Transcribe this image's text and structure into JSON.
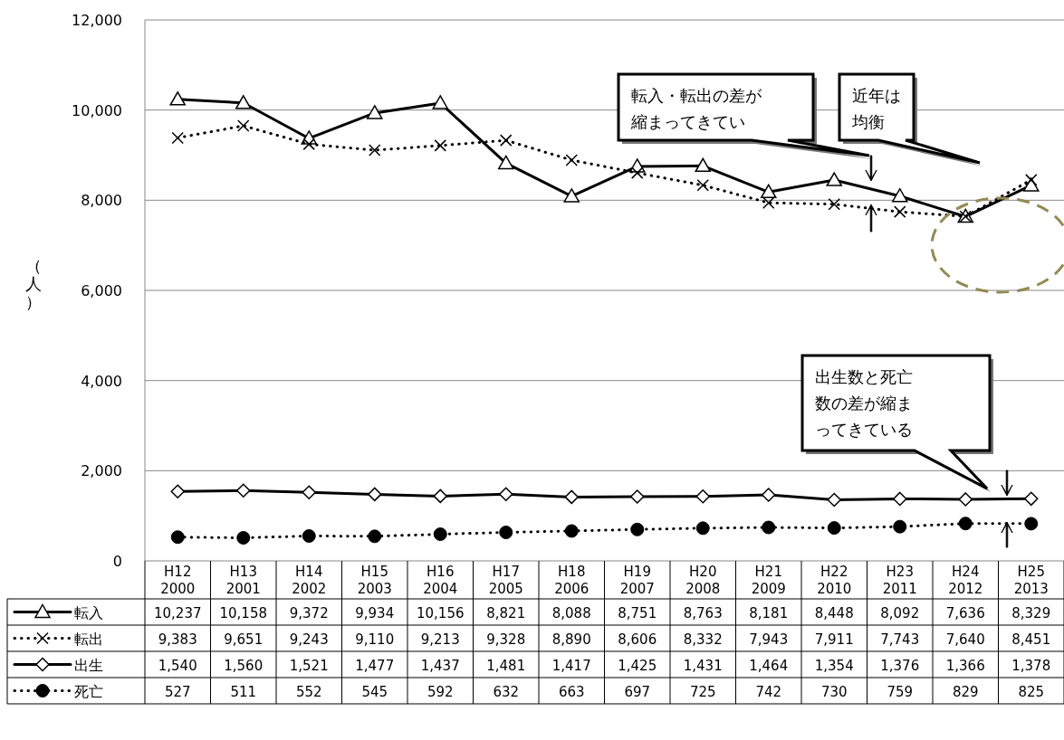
{
  "chart_data": {
    "type": "line",
    "ylabel": "（人）",
    "categories": [
      "H12\n2000",
      "H13\n2001",
      "H14\n2002",
      "H15\n2003",
      "H16\n2004",
      "H17\n2005",
      "H18\n2006",
      "H19\n2007",
      "H20\n2008",
      "H21\n2009",
      "H22\n2010",
      "H23\n2011",
      "H24\n2012",
      "H25\n2013"
    ],
    "series": [
      {
        "name": "転入",
        "color": "#000000",
        "marker": "triangle",
        "line_style": "solid",
        "values": [
          10237,
          10158,
          9372,
          9934,
          10156,
          8821,
          8088,
          8751,
          8763,
          8181,
          8448,
          8092,
          7636,
          8329
        ],
        "value_labels": [
          "10,237",
          "10,158",
          "9,372",
          "9,934",
          "10,156",
          "8,821",
          "8,088",
          "8,751",
          "8,763",
          "8,181",
          "8,448",
          "8,092",
          "7,636",
          "8,329"
        ]
      },
      {
        "name": "転出",
        "color": "#000000",
        "marker": "cross",
        "line_style": "dotted",
        "values": [
          9383,
          9651,
          9243,
          9110,
          9213,
          9328,
          8890,
          8606,
          8332,
          7943,
          7911,
          7743,
          7640,
          8451
        ],
        "value_labels": [
          "9,383",
          "9,651",
          "9,243",
          "9,110",
          "9,213",
          "9,328",
          "8,890",
          "8,606",
          "8,332",
          "7,943",
          "7,911",
          "7,743",
          "7,640",
          "8,451"
        ]
      },
      {
        "name": "出生",
        "color": "#000000",
        "marker": "diamond",
        "line_style": "solid",
        "values": [
          1540,
          1560,
          1521,
          1477,
          1437,
          1481,
          1417,
          1425,
          1431,
          1464,
          1354,
          1376,
          1366,
          1378
        ],
        "value_labels": [
          "1,540",
          "1,560",
          "1,521",
          "1,477",
          "1,437",
          "1,481",
          "1,417",
          "1,425",
          "1,431",
          "1,464",
          "1,354",
          "1,376",
          "1,366",
          "1,378"
        ]
      },
      {
        "name": "死亡",
        "color": "#000000",
        "marker": "circle",
        "line_style": "dotted",
        "values": [
          527,
          511,
          552,
          545,
          592,
          632,
          663,
          697,
          725,
          742,
          730,
          759,
          829,
          825
        ],
        "value_labels": [
          "527",
          "511",
          "552",
          "545",
          "592",
          "632",
          "663",
          "697",
          "725",
          "742",
          "730",
          "759",
          "829",
          "825"
        ]
      }
    ],
    "ylim": [
      0,
      12000
    ],
    "yticks": [
      0,
      {
        "value": 2000,
        "label": "2,000"
      },
      {
        "value": 4000,
        "label": "4,000"
      },
      {
        "value": 6000,
        "label": "6,000"
      },
      {
        "value": 8000,
        "label": "8,000"
      },
      {
        "value": 10000,
        "label": "10,000"
      },
      {
        "value": 12000,
        "label": "12,000"
      }
    ],
    "grid": "y",
    "legend": "bottom",
    "annotations": [
      "転入・転出の差が縮まってきてい",
      "近年は均衡",
      "出生数と死亡数の差が縮まってきている"
    ]
  }
}
